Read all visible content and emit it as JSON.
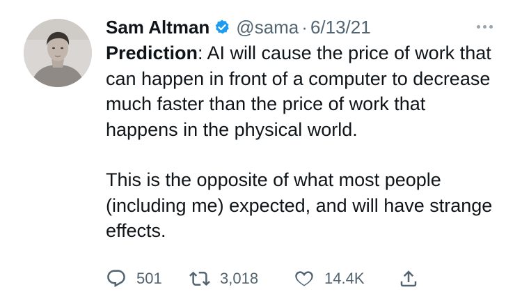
{
  "tweet": {
    "author": {
      "name": "Sam Altman",
      "handle": "@sama",
      "verified": true,
      "avatar": "avatar-photo"
    },
    "separator": "·",
    "date": "6/13/21",
    "more_icon": "more-horizontal-icon",
    "text": {
      "paragraph1_bold": "Prediction",
      "paragraph1_rest": ": AI will cause the price of work that can happen in front of a computer to decrease much faster than the price of work that happens in the physical world.",
      "paragraph2": "This is the opposite of what most people (including me) expected, and will have strange effects."
    },
    "actions": {
      "reply": {
        "icon": "reply-icon",
        "count": "501"
      },
      "retweet": {
        "icon": "retweet-icon",
        "count": "3,018"
      },
      "like": {
        "icon": "heart-icon",
        "count": "14.4K"
      },
      "share": {
        "icon": "share-icon"
      }
    }
  },
  "colors": {
    "text_primary": "#0f1419",
    "text_secondary": "#536471",
    "verified_blue": "#1d9bf0",
    "background": "#ffffff"
  }
}
